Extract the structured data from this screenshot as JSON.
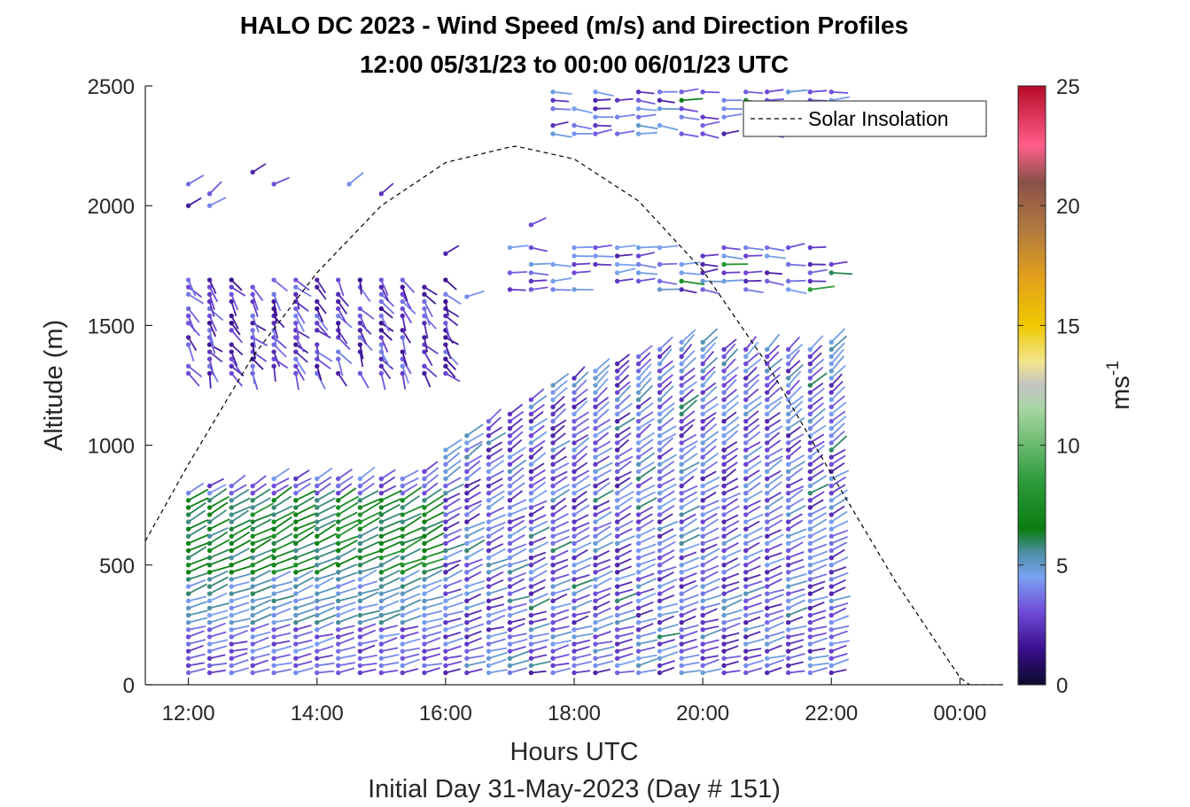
{
  "chart_data": {
    "type": "scatter",
    "title": [
      "HALO DC 2023 - Wind Speed (m/s) and Direction Profiles",
      "12:00 05/31/23 to 00:00 06/01/23  UTC"
    ],
    "xlabel": "Hours UTC",
    "xlabel2": "Initial Day 31-May-2023 (Day # 151)",
    "ylabel": "Altitude (m)",
    "xlim": [
      11.33,
      24.67
    ],
    "ylim": [
      0,
      2500
    ],
    "xticks": [
      12,
      14,
      16,
      18,
      20,
      22,
      24
    ],
    "xtick_labels": [
      "12:00",
      "14:00",
      "16:00",
      "18:00",
      "20:00",
      "22:00",
      "00:00"
    ],
    "yticks": [
      0,
      500,
      1000,
      1500,
      2000,
      2500
    ],
    "ytick_labels": [
      "0",
      "500",
      "1000",
      "1500",
      "2000",
      "2500"
    ],
    "colorbar": {
      "label": "ms",
      "label_sup": "-1",
      "range": [
        0,
        25
      ],
      "ticks": [
        0,
        5,
        10,
        15,
        20,
        25
      ],
      "tick_labels": [
        "0",
        "5",
        "10",
        "15",
        "20",
        "25"
      ],
      "stops": [
        {
          "v": 0,
          "c": "#0b0a2e"
        },
        {
          "v": 1.5,
          "c": "#3a0f8c"
        },
        {
          "v": 3,
          "c": "#6f49d8"
        },
        {
          "v": 4.5,
          "c": "#7aa2f2"
        },
        {
          "v": 5.5,
          "c": "#4f8fa6"
        },
        {
          "v": 6.5,
          "c": "#0a7d10"
        },
        {
          "v": 8.5,
          "c": "#2c9b3a"
        },
        {
          "v": 11.5,
          "c": "#a6d6a2"
        },
        {
          "v": 12.5,
          "c": "#c3c3c3"
        },
        {
          "v": 13.5,
          "c": "#f2e58c"
        },
        {
          "v": 15,
          "c": "#f0c800"
        },
        {
          "v": 17,
          "c": "#e3a01c"
        },
        {
          "v": 19,
          "c": "#b07a40"
        },
        {
          "v": 21,
          "c": "#8a5048"
        },
        {
          "v": 22.5,
          "c": "#ff5f8a"
        },
        {
          "v": 25,
          "c": "#b80a28"
        }
      ]
    },
    "legend": {
      "entries": [
        "Solar Insolation"
      ],
      "position": "top-right"
    },
    "solar_insolation": {
      "x": [
        11.33,
        12,
        13,
        14,
        15,
        16,
        17,
        17.1,
        18,
        19,
        20,
        21,
        22,
        23,
        24,
        24.15,
        24.67
      ],
      "y": [
        600,
        920,
        1370,
        1720,
        2000,
        2180,
        2245,
        2248,
        2195,
        2020,
        1730,
        1340,
        880,
        430,
        30,
        0,
        0
      ]
    },
    "wind_barbs": {
      "description": "Colored wind barbs: dot at (time, altitude), stick toward wind direction, color = speed",
      "barb_times": [
        12,
        12.33,
        12.67,
        13,
        13.33,
        13.67,
        14,
        14.33,
        14.67,
        15,
        15.33,
        15.67,
        16,
        16.33,
        16.67,
        17,
        17.33,
        17.67,
        18,
        18.33,
        18.67,
        19,
        19.33,
        19.67,
        20,
        20.33,
        20.67,
        21,
        21.33,
        21.67,
        22
      ],
      "boundary_layer_top_m": [
        820,
        830,
        840,
        850,
        860,
        860,
        860,
        860,
        870,
        870,
        880,
        890,
        1000,
        1050,
        1100,
        1150,
        1200,
        1250,
        1300,
        1330,
        1360,
        1390,
        1420,
        1440,
        1440,
        1420,
        1420,
        1420,
        1420,
        1420,
        1440
      ],
      "low_layer_vertical_spacing_m": 30,
      "elevated_layer": {
        "t_start": 12,
        "t_end": 16,
        "alt_low": 1300,
        "alt_high": 1700
      },
      "upper_segments": [
        {
          "t_start": 17,
          "t_end": 22,
          "alt_low": 1650,
          "alt_high": 1850
        },
        {
          "t_start": 17.5,
          "t_end": 22,
          "alt_low": 2300,
          "alt_high": 2500
        }
      ]
    }
  }
}
